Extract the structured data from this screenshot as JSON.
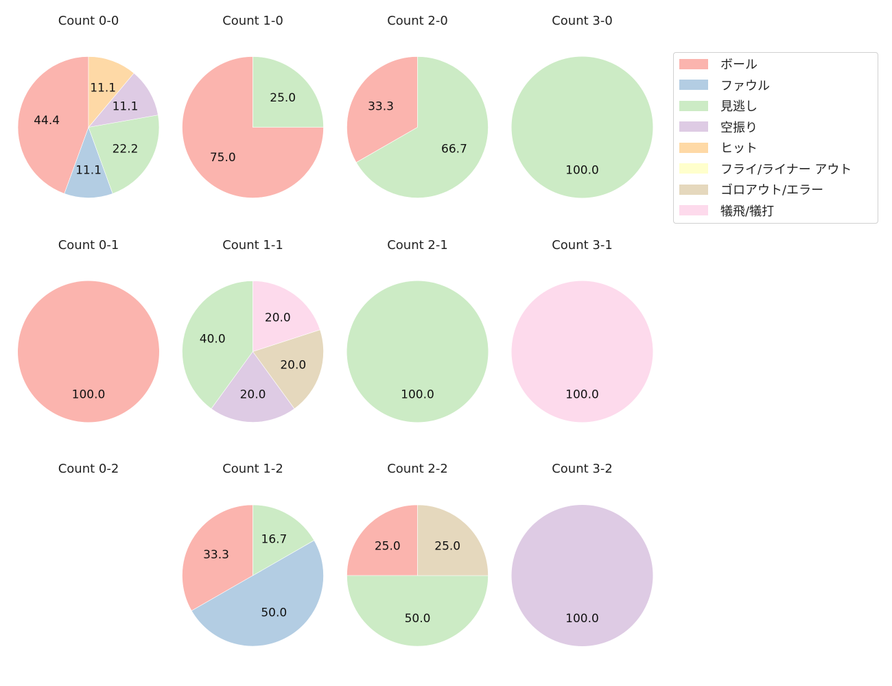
{
  "chart_data": {
    "type": "pie",
    "layout": {
      "rows": 3,
      "cols": 4,
      "legend_position": "upper right"
    },
    "categories": [
      "ボール",
      "ファウル",
      "見逃し",
      "空振り",
      "ヒット",
      "フライ/ライナー アウト",
      "ゴロアウト/エラー",
      "犠飛/犠打"
    ],
    "colors": [
      "#fbb4ae",
      "#b3cde3",
      "#ccebc5",
      "#decbe4",
      "#fed9a6",
      "#ffffcc",
      "#e5d8bd",
      "#fddaec"
    ],
    "charts": [
      {
        "title": "Count 0-0",
        "values": [
          44.4,
          11.1,
          22.2,
          11.1,
          11.1,
          0,
          0,
          0
        ]
      },
      {
        "title": "Count 1-0",
        "values": [
          75.0,
          0,
          25.0,
          0,
          0,
          0,
          0,
          0
        ]
      },
      {
        "title": "Count 2-0",
        "values": [
          33.3,
          0,
          66.7,
          0,
          0,
          0,
          0,
          0
        ]
      },
      {
        "title": "Count 3-0",
        "values": [
          0,
          0,
          100.0,
          0,
          0,
          0,
          0,
          0
        ]
      },
      {
        "title": "Count 0-1",
        "values": [
          100.0,
          0,
          0,
          0,
          0,
          0,
          0,
          0
        ]
      },
      {
        "title": "Count 1-1",
        "values": [
          0,
          0,
          40.0,
          20.0,
          0,
          0,
          20.0,
          20.0
        ]
      },
      {
        "title": "Count 2-1",
        "values": [
          0,
          0,
          100.0,
          0,
          0,
          0,
          0,
          0
        ]
      },
      {
        "title": "Count 3-1",
        "values": [
          0,
          0,
          0,
          0,
          0,
          0,
          0,
          100.0
        ]
      },
      {
        "title": "Count 0-2",
        "values": [
          0,
          0,
          0,
          0,
          0,
          0,
          0,
          0
        ]
      },
      {
        "title": "Count 1-2",
        "values": [
          33.3,
          50.0,
          16.7,
          0,
          0,
          0,
          0,
          0
        ]
      },
      {
        "title": "Count 2-2",
        "values": [
          25.0,
          0,
          50.0,
          0,
          0,
          0,
          25.0,
          0
        ]
      },
      {
        "title": "Count 3-2",
        "values": [
          0,
          0,
          0,
          100.0,
          0,
          0,
          0,
          0
        ]
      }
    ]
  },
  "legend": {
    "items": [
      {
        "label": "ボール",
        "color": "#fbb4ae"
      },
      {
        "label": "ファウル",
        "color": "#b3cde3"
      },
      {
        "label": "見逃し",
        "color": "#ccebc5"
      },
      {
        "label": "空振り",
        "color": "#decbe4"
      },
      {
        "label": "ヒット",
        "color": "#fed9a6"
      },
      {
        "label": "フライ/ライナー アウト",
        "color": "#ffffcc"
      },
      {
        "label": "ゴロアウト/エラー",
        "color": "#e5d8bd"
      },
      {
        "label": "犠飛/犠打",
        "color": "#fddaec"
      }
    ]
  }
}
